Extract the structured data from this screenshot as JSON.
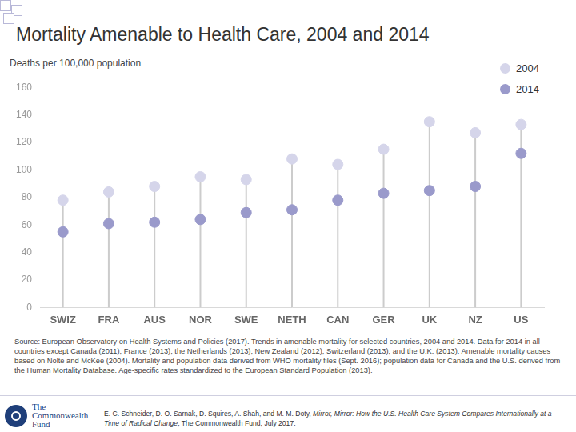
{
  "chart_data": {
    "type": "lollipop",
    "title": "Mortality Amenable to Health Care, 2004 and 2014",
    "y_label": "Deaths per 100,000 population",
    "categories": [
      "SWIZ",
      "FRA",
      "AUS",
      "NOR",
      "SWE",
      "NETH",
      "CAN",
      "GER",
      "UK",
      "NZ",
      "US"
    ],
    "series": [
      {
        "name": "2004",
        "color": "#d5d5ea",
        "values": [
          78,
          84,
          88,
          95,
          93,
          108,
          104,
          115,
          135,
          127,
          133
        ]
      },
      {
        "name": "2014",
        "color": "#9a9acb",
        "values": [
          55,
          61,
          62,
          64,
          69,
          71,
          78,
          83,
          85,
          88,
          112
        ]
      }
    ],
    "ylim": [
      0,
      160
    ],
    "yticks": [
      0,
      20,
      40,
      60,
      80,
      100,
      120,
      140,
      160
    ],
    "grid": false,
    "legend": "top-right",
    "source": "Source: European Observatory on Health Systems and Policies (2017). Trends in amenable mortality for selected countries, 2004 and 2014. Data for 2014 in all countries except Canada (2011), France (2013), the Netherlands (2013), New Zealand (2012), Switzerland (2013), and the U.K. (2013). Amenable mortality causes based on Nolte and McKee (2004). Mortality and population data derived from WHO mortality files (Sept. 2016); population data for Canada and the U.S. derived from the Human Mortality Database. Age-specific rates standardized to the European Standard Population (2013).",
    "citation": {
      "authors": "E. C. Schneider, D. O. Sarnak, D. Squires, A. Shah, and M. M. Doty, ",
      "work": "Mirror, Mirror: How the U.S. Health Care System Compares Internationally at a Time of Radical Change",
      "publisher": ", The Commonwealth Fund, July 2017."
    },
    "logo_text": [
      "The",
      "Commonwealth",
      "Fund"
    ]
  }
}
